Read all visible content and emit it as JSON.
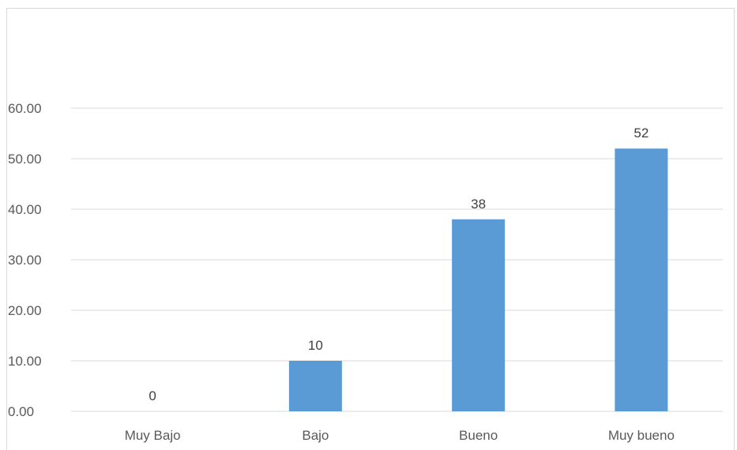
{
  "chart_data": {
    "type": "bar",
    "categories": [
      "Muy Bajo",
      "Bajo",
      "Bueno",
      "Muy bueno"
    ],
    "values": [
      0,
      10,
      38,
      52
    ],
    "data_labels": [
      "0",
      "10",
      "38",
      "52"
    ],
    "y_ticks": [
      "0.00",
      "10.00",
      "20.00",
      "30.00",
      "40.00",
      "50.00",
      "60.00"
    ],
    "ylim": [
      0,
      60
    ],
    "title": "",
    "xlabel": "",
    "ylabel": "",
    "grid": true,
    "legend": "none",
    "colors": {
      "bar": "#5b9bd5",
      "grid": "#d9d9d9",
      "axis_text": "#595959"
    }
  }
}
